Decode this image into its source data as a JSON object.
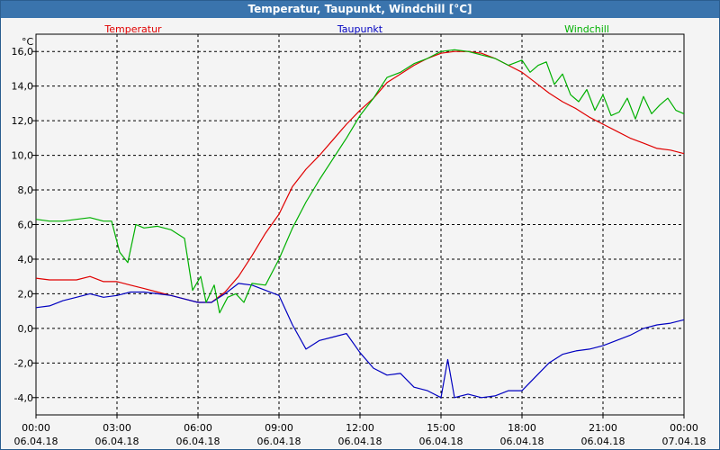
{
  "window": {
    "title": "Temperatur, Taupunkt, Windchill [°C]"
  },
  "chart_data": {
    "type": "line",
    "title": "Temperatur, Taupunkt, Windchill [°C]",
    "ylabel": "°C",
    "xlabel": "",
    "ylim": [
      -5,
      17
    ],
    "xlim": [
      0,
      24
    ],
    "grid": true,
    "legend": [
      "Temperatur",
      "Taupunkt",
      "Windchill"
    ],
    "y_ticks": [
      -4,
      -2,
      0,
      2,
      4,
      6,
      8,
      10,
      12,
      14,
      16
    ],
    "y_tick_labels": [
      "-4,0",
      "-2,0",
      "0,0",
      "2,0",
      "4,0",
      "6,0",
      "8,0",
      "10,0",
      "12,0",
      "14,0",
      "16,0"
    ],
    "x_ticks": [
      0,
      3,
      6,
      9,
      12,
      15,
      18,
      21,
      24
    ],
    "x_tick_times": [
      "00:00",
      "03:00",
      "06:00",
      "09:00",
      "12:00",
      "15:00",
      "18:00",
      "21:00",
      "00:00"
    ],
    "x_tick_dates": [
      "06.04.18",
      "06.04.18",
      "06.04.18",
      "06.04.18",
      "06.04.18",
      "06.04.18",
      "06.04.18",
      "06.04.18",
      "07.04.18"
    ],
    "series": [
      {
        "name": "Temperatur",
        "color": "#e00000",
        "x": [
          0,
          0.5,
          1,
          1.5,
          2,
          2.5,
          3,
          3.5,
          4,
          4.5,
          5,
          5.5,
          6,
          6.5,
          7,
          7.5,
          8,
          8.5,
          9,
          9.5,
          10,
          10.5,
          11,
          11.5,
          12,
          12.5,
          13,
          13.5,
          14,
          14.5,
          15,
          15.5,
          16,
          16.5,
          17,
          17.5,
          18,
          18.5,
          19,
          19.5,
          20,
          20.5,
          21,
          21.5,
          22,
          22.5,
          23,
          23.5,
          24
        ],
        "values": [
          2.9,
          2.8,
          2.8,
          2.8,
          3.0,
          2.7,
          2.7,
          2.5,
          2.3,
          2.1,
          1.9,
          1.7,
          1.5,
          1.5,
          2.1,
          3.0,
          4.2,
          5.5,
          6.6,
          8.2,
          9.2,
          10.0,
          10.9,
          11.8,
          12.6,
          13.3,
          14.2,
          14.7,
          15.2,
          15.6,
          15.9,
          16.0,
          16.0,
          15.9,
          15.6,
          15.2,
          14.8,
          14.2,
          13.6,
          13.1,
          12.7,
          12.2,
          11.8,
          11.4,
          11.0,
          10.7,
          10.4,
          10.3,
          10.1
        ]
      },
      {
        "name": "Taupunkt",
        "color": "#0000c0",
        "x": [
          0,
          0.5,
          1,
          1.5,
          2,
          2.5,
          3,
          3.5,
          4,
          4.5,
          5,
          5.5,
          6,
          6.5,
          7,
          7.5,
          8,
          8.5,
          9,
          9.5,
          10,
          10.5,
          11,
          11.5,
          12,
          12.5,
          13,
          13.5,
          14,
          14.5,
          15,
          15.25,
          15.5,
          16,
          16.5,
          17,
          17.5,
          18,
          18.5,
          19,
          19.5,
          20,
          20.5,
          21,
          21.5,
          22,
          22.5,
          23,
          23.5,
          24
        ],
        "values": [
          1.2,
          1.3,
          1.6,
          1.8,
          2.0,
          1.8,
          1.9,
          2.1,
          2.1,
          2.0,
          1.9,
          1.7,
          1.5,
          1.5,
          2.0,
          2.6,
          2.5,
          2.2,
          1.9,
          0.2,
          -1.2,
          -0.7,
          -0.5,
          -0.3,
          -1.4,
          -2.3,
          -2.7,
          -2.6,
          -3.4,
          -3.6,
          -4.0,
          -1.8,
          -4.0,
          -3.8,
          -4.0,
          -3.9,
          -3.6,
          -3.6,
          -2.8,
          -2.0,
          -1.5,
          -1.3,
          -1.2,
          -1.0,
          -0.7,
          -0.4,
          0.0,
          0.2,
          0.3,
          0.5
        ]
      },
      {
        "name": "Windchill",
        "color": "#00b000",
        "x": [
          0,
          0.5,
          1,
          1.5,
          2,
          2.5,
          2.8,
          3.1,
          3.4,
          3.7,
          4,
          4.5,
          5,
          5.5,
          5.8,
          6.1,
          6.3,
          6.6,
          6.8,
          7.1,
          7.4,
          7.7,
          8,
          8.5,
          9,
          9.5,
          10,
          10.5,
          11,
          11.5,
          12,
          12.5,
          13,
          13.5,
          14,
          14.5,
          15,
          15.5,
          16,
          16.5,
          17,
          17.5,
          18,
          18.3,
          18.6,
          18.9,
          19.2,
          19.5,
          19.8,
          20.1,
          20.4,
          20.7,
          21,
          21.3,
          21.6,
          21.9,
          22.2,
          22.5,
          22.8,
          23.1,
          23.4,
          23.7,
          24
        ],
        "values": [
          6.3,
          6.2,
          6.2,
          6.3,
          6.4,
          6.2,
          6.2,
          4.4,
          3.8,
          6.0,
          5.8,
          5.9,
          5.7,
          5.2,
          2.2,
          3.0,
          1.5,
          2.5,
          0.9,
          1.8,
          2.0,
          1.5,
          2.6,
          2.5,
          4.0,
          5.8,
          7.3,
          8.6,
          9.8,
          11.0,
          12.3,
          13.3,
          14.5,
          14.8,
          15.3,
          15.6,
          16.0,
          16.1,
          16.0,
          15.8,
          15.6,
          15.2,
          15.5,
          14.8,
          15.2,
          15.4,
          14.1,
          14.7,
          13.5,
          13.1,
          13.8,
          12.6,
          13.5,
          12.3,
          12.5,
          13.3,
          12.1,
          13.4,
          12.4,
          12.9,
          13.3,
          12.6,
          12.4
        ]
      }
    ]
  }
}
